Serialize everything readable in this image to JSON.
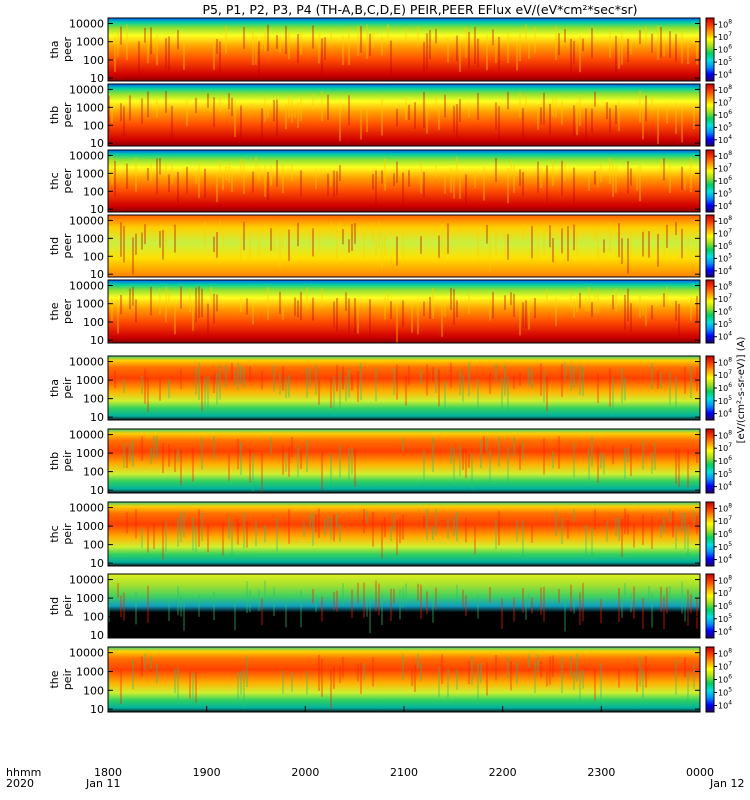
{
  "chart_data": {
    "type": "heatmap",
    "title": "P5, P1, P2, P3, P4 (TH-A,B,C,D,E) PEIR,PEER EFlux eV/(eV*cm²*sec*sr)",
    "time_axis": {
      "range": [
        "1800",
        "0000"
      ],
      "ticks": [
        "1800",
        "1900",
        "2000",
        "2100",
        "2200",
        "2300",
        "0000"
      ],
      "row_label": "hhmm",
      "year": "2020",
      "start_date": "Jan 11",
      "end_date": "Jan 12"
    },
    "energy_axis": {
      "scale": "log",
      "ticks": [
        "10",
        "100",
        "1000",
        "10000"
      ],
      "range": [
        7,
        20000
      ]
    },
    "colorbar": {
      "scale": "log",
      "tick_exponents": [
        4,
        5,
        6,
        7,
        8
      ],
      "label_electron": "[eV/(cm²-s-sr-eV)] (A)",
      "label_ion": "[eV/(cm²-s-sr-eV)] (A)",
      "colors": [
        "#200070",
        "#0000ff",
        "#0090ff",
        "#00e0e0",
        "#00d060",
        "#a0e020",
        "#ffff00",
        "#ffa000",
        "#ff4000",
        "#c80000"
      ]
    },
    "panels": [
      {
        "label": "tha peer",
        "probe": "tha",
        "species": "peer"
      },
      {
        "label": "thb peer",
        "probe": "thb",
        "species": "peer"
      },
      {
        "label": "thc peer",
        "probe": "thc",
        "species": "peer"
      },
      {
        "label": "thd peer",
        "probe": "thd",
        "species": "peer"
      },
      {
        "label": "the peer",
        "probe": "the",
        "species": "peer"
      },
      {
        "label": "tha peir",
        "probe": "tha",
        "species": "peir"
      },
      {
        "label": "thb peir",
        "probe": "thb",
        "species": "peir"
      },
      {
        "label": "thc peir",
        "probe": "thc",
        "species": "peir"
      },
      {
        "label": "thd peir",
        "probe": "thd",
        "species": "peir"
      },
      {
        "label": "the peir",
        "probe": "the",
        "species": "peir"
      }
    ]
  }
}
